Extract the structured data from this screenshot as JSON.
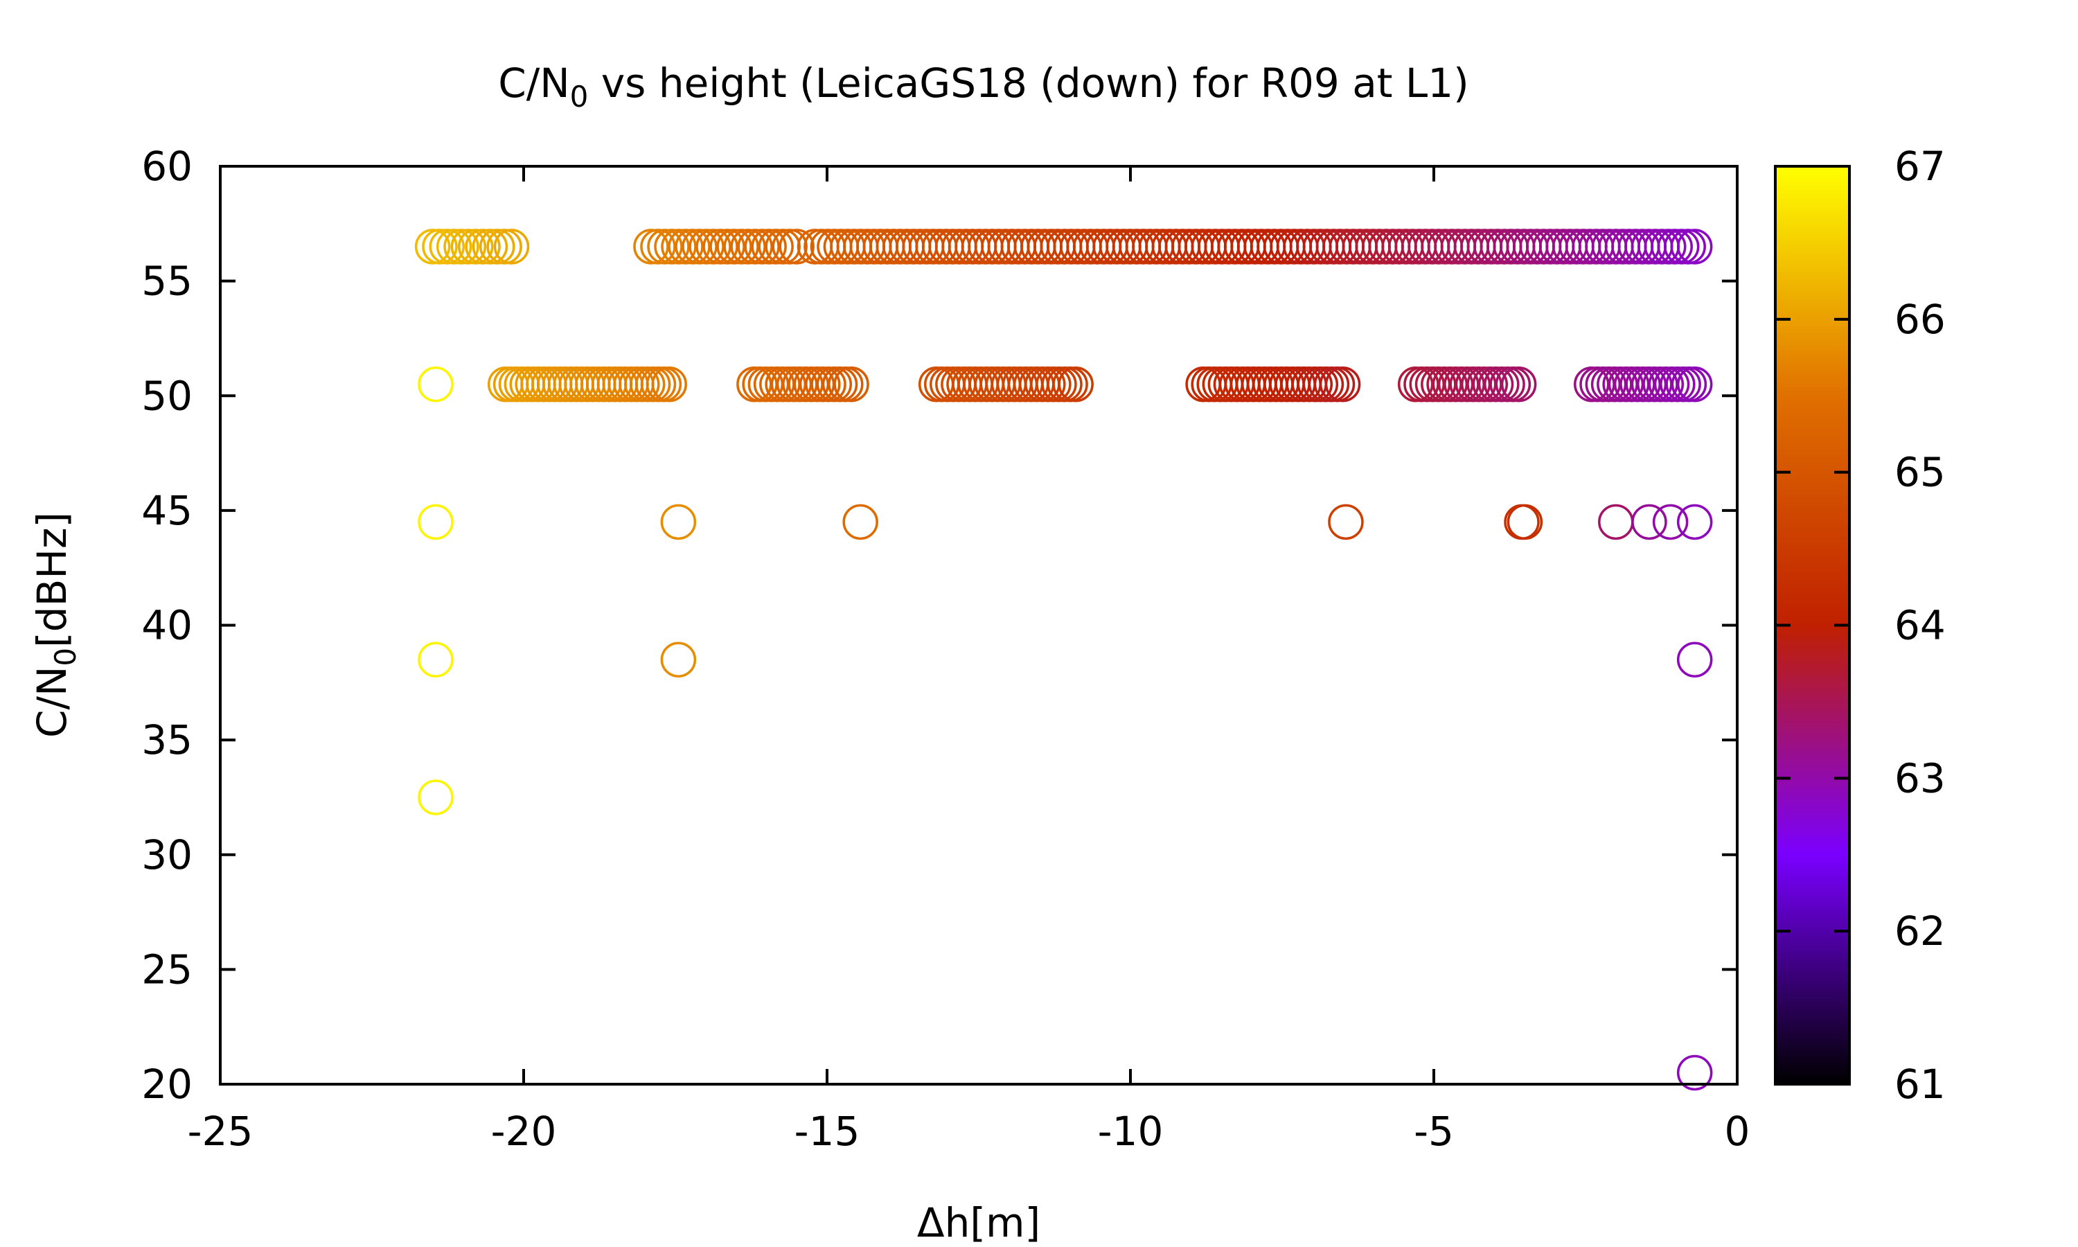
{
  "chart_data": {
    "type": "scatter",
    "title": "C/N",
    "title_sub": "0",
    "title_rest": " vs height (LeicaGS18 (down) for R09 at L1)",
    "xlabel": "Δh[m]",
    "ylabel": "C/N",
    "ylabel_sub": "0",
    "ylabel_rest": "[dBHz]",
    "xlim": [
      -25,
      0
    ],
    "ylim": [
      20,
      60
    ],
    "x_ticks": [
      "-25",
      "-20",
      "-15",
      "-10",
      "-5",
      "0"
    ],
    "y_ticks": [
      "20",
      "25",
      "30",
      "35",
      "40",
      "45",
      "50",
      "55",
      "60"
    ],
    "colorbar": {
      "range": [
        61,
        67
      ],
      "ticks": [
        "61",
        "62",
        "63",
        "64",
        "65",
        "66",
        "67"
      ],
      "palette": [
        "#000000",
        "#7a00ff",
        "#c02000",
        "#e07000",
        "#ffff00"
      ]
    },
    "grid": false,
    "marker": "open-circle",
    "rows": [
      {
        "y": 56.5,
        "segments": [
          [
            -21.5,
            -20.2
          ],
          [
            -17.9,
            -15.5
          ],
          [
            -15.2,
            -0.7
          ]
        ],
        "z_start": 66.3,
        "z_end": 62.8,
        "count": 170
      },
      {
        "y": 50.5,
        "segments": [
          [
            -20.3,
            -17.6
          ],
          [
            -16.2,
            -14.6
          ],
          [
            -13.2,
            -10.9
          ],
          [
            -8.8,
            -6.5
          ],
          [
            -5.3,
            -3.6
          ],
          [
            -2.4,
            -0.7
          ]
        ],
        "z_start": 66.2,
        "z_end": 62.9,
        "count": 140
      }
    ],
    "points": [
      {
        "x": -21.45,
        "y": 50.5,
        "z": 66.9
      },
      {
        "x": -21.45,
        "y": 44.5,
        "z": 66.9
      },
      {
        "x": -21.45,
        "y": 38.5,
        "z": 66.9
      },
      {
        "x": -21.45,
        "y": 32.5,
        "z": 66.9
      },
      {
        "x": -17.45,
        "y": 44.5,
        "z": 65.8
      },
      {
        "x": -17.45,
        "y": 38.5,
        "z": 65.8
      },
      {
        "x": -14.45,
        "y": 44.5,
        "z": 65.4
      },
      {
        "x": -6.45,
        "y": 44.5,
        "z": 64.6
      },
      {
        "x": -3.55,
        "y": 44.5,
        "z": 64.3
      },
      {
        "x": -3.5,
        "y": 44.5,
        "z": 64.3
      },
      {
        "x": -2.0,
        "y": 44.5,
        "z": 63.4
      },
      {
        "x": -1.45,
        "y": 44.5,
        "z": 63.1
      },
      {
        "x": -1.1,
        "y": 44.5,
        "z": 63.0
      },
      {
        "x": -0.7,
        "y": 44.5,
        "z": 62.9
      },
      {
        "x": -0.7,
        "y": 38.5,
        "z": 62.9
      },
      {
        "x": -0.7,
        "y": 20.5,
        "z": 62.9
      }
    ]
  }
}
